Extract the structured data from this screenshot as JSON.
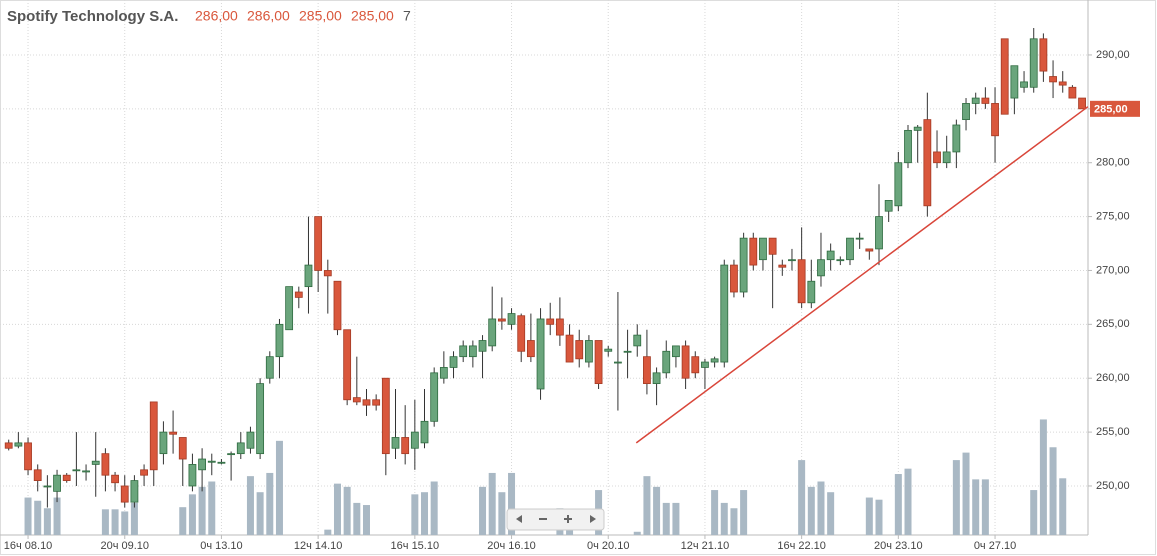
{
  "header": {
    "name": "Spotify Technology S.A.",
    "open": "286,00",
    "high": "286,00",
    "low": "285,00",
    "close": "285,00",
    "volume": "7"
  },
  "chart_data": {
    "type": "candlestick",
    "categories": [
      null,
      null,
      "16ч 08.10",
      null,
      null,
      null,
      null,
      null,
      null,
      null,
      null,
      null,
      "20ч 09.10",
      null,
      null,
      null,
      null,
      null,
      null,
      null,
      null,
      null,
      "0ч 13.10",
      null,
      null,
      null,
      null,
      null,
      null,
      null,
      null,
      null,
      "12ч 14.10",
      null,
      null,
      null,
      null,
      null,
      null,
      null,
      null,
      null,
      "16ч 15.10",
      null,
      null,
      null,
      null,
      null,
      null,
      null,
      null,
      null,
      "20ч 16.10",
      null,
      null,
      null,
      null,
      null,
      null,
      null,
      null,
      null,
      "0ч 20.10",
      null,
      null,
      null,
      null,
      null,
      null,
      null,
      null,
      null,
      "12ч 21.10",
      null,
      null,
      null,
      null,
      null,
      null,
      null,
      null,
      null,
      "16ч 22.10",
      null,
      null,
      null,
      null,
      null,
      null,
      null,
      null,
      null,
      "20ч 23.10",
      null,
      null,
      null,
      null,
      null,
      null,
      null,
      null,
      null,
      "0ч 27.10",
      null,
      null,
      null,
      null,
      null,
      null,
      null,
      null,
      null
    ],
    "candles": [
      [
        254,
        254.3,
        253.3,
        253.5
      ],
      [
        253.7,
        255,
        253.5,
        254
      ],
      [
        254,
        254.5,
        251,
        251.5
      ],
      [
        251.5,
        252,
        249.5,
        250.5
      ],
      [
        250,
        251,
        248,
        250
      ],
      [
        249.5,
        251.5,
        248.5,
        251
      ],
      [
        251,
        251.2,
        250.3,
        250.5
      ],
      [
        251.5,
        255,
        250,
        251.5
      ],
      [
        251.3,
        252,
        250.5,
        251.4
      ],
      [
        252,
        255,
        249,
        252.3
      ],
      [
        253,
        253.5,
        249.5,
        251
      ],
      [
        251,
        251.3,
        249.5,
        250.3
      ],
      [
        250,
        251,
        248,
        248.5
      ],
      [
        248.5,
        251,
        248,
        250.5
      ],
      [
        251.5,
        252,
        250,
        251
      ],
      [
        257.8,
        257.8,
        250,
        251.5
      ],
      [
        253,
        256,
        252,
        255
      ],
      [
        255,
        257,
        253,
        254.8
      ],
      [
        254.5,
        254.5,
        250,
        252.5
      ],
      [
        250,
        253,
        249.5,
        252
      ],
      [
        251.5,
        253.5,
        249.5,
        252.5
      ],
      [
        252.2,
        253,
        251,
        252.3
      ],
      [
        252.2,
        252.5,
        252,
        252.2
      ],
      [
        253,
        253.2,
        250.5,
        253
      ],
      [
        253,
        255,
        252.5,
        254
      ],
      [
        253.5,
        255.5,
        253,
        255
      ],
      [
        253,
        260,
        252.5,
        259.5
      ],
      [
        260,
        262.5,
        259.5,
        262
      ],
      [
        262,
        265.5,
        260,
        265
      ],
      [
        264.5,
        268.5,
        264.5,
        268.5
      ],
      [
        268,
        268.5,
        266.5,
        267.5
      ],
      [
        268.5,
        275,
        266,
        270.5
      ],
      [
        275,
        275,
        268,
        270
      ],
      [
        270,
        271,
        266,
        269.5
      ],
      [
        269,
        269,
        264,
        264.5
      ],
      [
        264.5,
        264.5,
        257.5,
        258
      ],
      [
        258.2,
        262,
        257.5,
        257.8
      ],
      [
        258,
        259,
        256.5,
        257.5
      ],
      [
        258,
        258.5,
        257,
        257.5
      ],
      [
        260,
        260,
        251,
        253
      ],
      [
        253.5,
        259,
        252.5,
        254.5
      ],
      [
        254.5,
        257.5,
        252,
        253
      ],
      [
        253.5,
        258,
        251.5,
        255
      ],
      [
        254,
        259,
        253.5,
        256
      ],
      [
        256,
        261,
        255.5,
        260.5
      ],
      [
        260,
        262.5,
        259.5,
        261
      ],
      [
        261,
        262.5,
        260,
        262
      ],
      [
        262,
        263.5,
        261.5,
        263
      ],
      [
        262,
        263.5,
        261,
        263
      ],
      [
        262.5,
        264,
        260,
        263.5
      ],
      [
        263,
        268.5,
        262.5,
        265.5
      ],
      [
        265.5,
        267.5,
        264.5,
        265.3
      ],
      [
        265,
        266.5,
        264.5,
        266
      ],
      [
        265.8,
        266,
        261.5,
        262.5
      ],
      [
        263.5,
        266,
        261.5,
        262
      ],
      [
        259,
        266.5,
        258,
        265.5
      ],
      [
        265.5,
        267,
        264,
        265
      ],
      [
        265.5,
        267.5,
        263,
        264
      ],
      [
        264,
        265,
        261.5,
        261.5
      ],
      [
        263.5,
        264.5,
        261,
        261.8
      ],
      [
        261.5,
        264,
        261,
        263.5
      ],
      [
        263.5,
        263.5,
        259,
        259.5
      ],
      [
        262.5,
        263,
        262,
        262.7
      ],
      [
        261.5,
        268,
        257,
        261.5
      ],
      [
        262.5,
        264.5,
        260,
        262.5
      ],
      [
        263,
        265,
        262,
        264
      ],
      [
        262,
        264.5,
        258.5,
        259.5
      ],
      [
        259.5,
        261,
        257.5,
        260.5
      ],
      [
        260.5,
        263.5,
        260,
        262.5
      ],
      [
        262,
        263,
        261,
        263
      ],
      [
        263,
        263.5,
        259,
        260
      ],
      [
        262,
        262.5,
        260,
        260.5
      ],
      [
        261,
        261.8,
        259,
        261.5
      ],
      [
        261.5,
        262,
        261,
        261.8
      ],
      [
        261.5,
        271,
        261,
        270.5
      ],
      [
        270.5,
        271,
        267.5,
        268
      ],
      [
        268,
        273.5,
        267.5,
        273
      ],
      [
        273,
        273.5,
        270,
        270.5
      ],
      [
        271,
        273,
        270,
        273
      ],
      [
        273,
        273,
        266.5,
        271.5
      ],
      [
        270.5,
        271,
        269.5,
        270.3
      ],
      [
        271,
        272,
        270,
        271
      ],
      [
        271,
        274,
        266.5,
        267
      ],
      [
        267,
        271,
        266.5,
        269
      ],
      [
        269.5,
        273.5,
        268.5,
        271
      ],
      [
        271,
        272.5,
        270,
        271.8
      ],
      [
        271,
        271.3,
        270.5,
        271
      ],
      [
        271,
        273,
        270.5,
        273
      ],
      [
        273,
        273.5,
        272,
        273
      ],
      [
        272,
        272,
        271,
        271.8
      ],
      [
        272,
        278,
        270.5,
        275
      ],
      [
        275.5,
        276.5,
        274.5,
        276.5
      ],
      [
        276,
        281,
        275.5,
        280
      ],
      [
        280,
        283.5,
        279.5,
        283
      ],
      [
        283,
        283.5,
        280,
        283.3
      ],
      [
        284,
        286.5,
        275,
        276
      ],
      [
        281,
        283,
        279.5,
        280
      ],
      [
        280,
        282.5,
        279.5,
        281
      ],
      [
        281,
        284,
        279.5,
        283.5
      ],
      [
        284,
        286,
        283,
        285.5
      ],
      [
        285.5,
        286.5,
        284.5,
        286
      ],
      [
        286,
        287,
        285,
        285.5
      ],
      [
        285.5,
        287,
        280,
        282.5
      ],
      [
        291.5,
        291.5,
        284.5,
        284.5
      ],
      [
        286,
        289,
        284.5,
        289
      ],
      [
        287,
        288.5,
        286.5,
        287.5
      ],
      [
        287,
        292.5,
        286.5,
        291.5
      ],
      [
        291.5,
        292,
        287.5,
        288.5
      ],
      [
        288,
        289.5,
        286,
        287.5
      ],
      [
        287.5,
        288.5,
        286.5,
        287.2
      ],
      [
        287,
        287.2,
        286,
        286
      ],
      [
        286,
        286,
        285,
        285
      ]
    ],
    "volumes": [
      0,
      0,
      35,
      32,
      25,
      35,
      0,
      0,
      0,
      0,
      24,
      24,
      22,
      30,
      0,
      0,
      0,
      0,
      26,
      38,
      45,
      50,
      0,
      0,
      0,
      55,
      40,
      58,
      88,
      0,
      0,
      0,
      0,
      5,
      48,
      45,
      30,
      28,
      0,
      0,
      0,
      0,
      38,
      40,
      50,
      0,
      0,
      0,
      0,
      45,
      58,
      40,
      58,
      0,
      0,
      0,
      0,
      25,
      20,
      0,
      0,
      42,
      0,
      0,
      0,
      3,
      55,
      45,
      30,
      30,
      0,
      0,
      0,
      42,
      30,
      25,
      42,
      0,
      0,
      0,
      0,
      0,
      70,
      45,
      50,
      40,
      0,
      0,
      0,
      35,
      33,
      0,
      57,
      62,
      0,
      0,
      0,
      0,
      70,
      77,
      52,
      52,
      0,
      0,
      0,
      0,
      42,
      108,
      82,
      53,
      0,
      0
    ],
    "volume_lim": [
      0,
      500
    ],
    "up_color": "#6aa57c",
    "down_color": "#d9573c",
    "volume_color": "#a9b8c4",
    "ylim": [
      245.45,
      295.1
    ],
    "yticks": [
      {
        "value": 250,
        "label": "250,00"
      },
      {
        "value": 255,
        "label": "255,00"
      },
      {
        "value": 260,
        "label": "260,00"
      },
      {
        "value": 265,
        "label": "265,00"
      },
      {
        "value": 270,
        "label": "270,00"
      },
      {
        "value": 275,
        "label": "275,00"
      },
      {
        "value": 280,
        "label": "280,00"
      },
      {
        "value": 285,
        "label": "285,00"
      },
      {
        "value": 290,
        "label": "290,00"
      }
    ],
    "last_price": {
      "value": 285,
      "label": "285,00"
    },
    "trendline": {
      "x": [
        64.9,
        111.6
      ],
      "y": [
        254,
        285.2
      ],
      "color": "#d9463a"
    },
    "grid": true
  }
}
